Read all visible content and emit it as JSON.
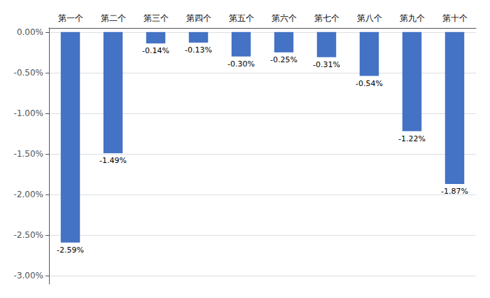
{
  "chart_data": {
    "type": "bar",
    "categories": [
      "第一个",
      "第二个",
      "第三个",
      "第四个",
      "第五个",
      "第六个",
      "第七个",
      "第八个",
      "第九个",
      "第十个"
    ],
    "values": [
      -2.59,
      -1.49,
      -0.14,
      -0.13,
      -0.3,
      -0.25,
      -0.31,
      -0.54,
      -1.22,
      -1.87
    ],
    "value_labels": [
      "-2.59%",
      "-1.49%",
      "-0.14%",
      "-0.13%",
      "-0.30%",
      "-0.25%",
      "-0.31%",
      "-0.54%",
      "-1.22%",
      "-1.87%"
    ],
    "color": "#4472C4",
    "ylim": [
      -3.1,
      0.05
    ],
    "yticks": [
      {
        "value": 0.0,
        "label": "0.00%"
      },
      {
        "value": -0.5,
        "label": "-0.50%"
      },
      {
        "value": -1.0,
        "label": "-1.00%"
      },
      {
        "value": -1.5,
        "label": "-1.50%"
      },
      {
        "value": -2.0,
        "label": "-2.00%"
      },
      {
        "value": -2.5,
        "label": "-2.50%"
      },
      {
        "value": -3.0,
        "label": "-3.00%"
      }
    ],
    "grid": true
  }
}
